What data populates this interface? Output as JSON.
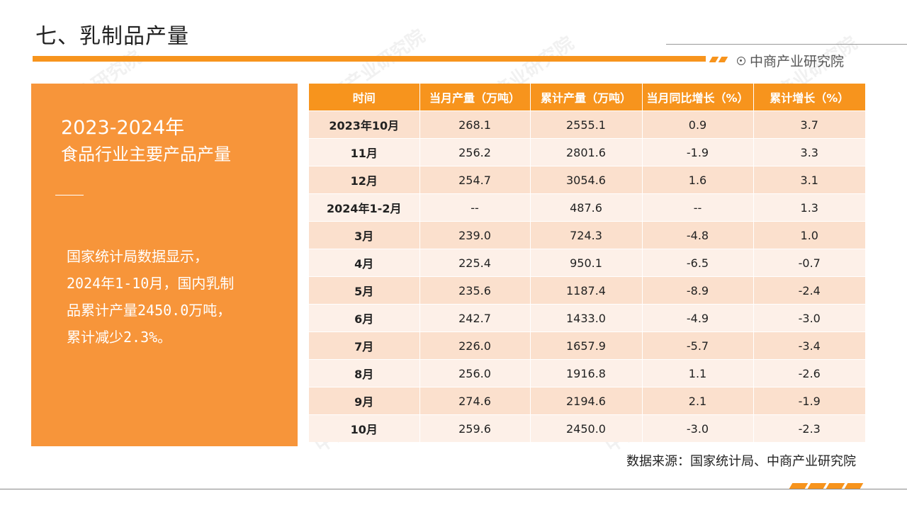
{
  "header": {
    "title": "七、乳制品产量",
    "brand": "中商产业研究院"
  },
  "left_panel": {
    "year": "2023-2024年",
    "subtitle": "食品行业主要产品产量",
    "body_lines": [
      "国家统计局数据显示，",
      "2024年1-10月，国内乳制",
      "品累计产量2450.0万吨，",
      "累计减少2.3%。"
    ]
  },
  "table": {
    "headers": [
      "时间",
      "当月产量（万吨）",
      "累计产量（万吨）",
      "当月同比增长（%）",
      "累计增长（%）"
    ],
    "rows": [
      [
        "2023年10月",
        "268.1",
        "2555.1",
        "0.9",
        "3.7"
      ],
      [
        "11月",
        "256.2",
        "2801.6",
        "-1.9",
        "3.3"
      ],
      [
        "12月",
        "254.7",
        "3054.6",
        "1.6",
        "3.1"
      ],
      [
        "2024年1-2月",
        "--",
        "487.6",
        "--",
        "1.3"
      ],
      [
        "3月",
        "239.0",
        "724.3",
        "-4.8",
        "1.0"
      ],
      [
        "4月",
        "225.4",
        "950.1",
        "-6.5",
        "-0.7"
      ],
      [
        "5月",
        "235.6",
        "1187.4",
        "-8.9",
        "-2.4"
      ],
      [
        "6月",
        "242.7",
        "1433.0",
        "-4.9",
        "-3.0"
      ],
      [
        "7月",
        "226.0",
        "1657.9",
        "-5.7",
        "-3.4"
      ],
      [
        "8月",
        "256.0",
        "1916.8",
        "1.1",
        "-2.6"
      ],
      [
        "9月",
        "274.6",
        "2194.6",
        "2.1",
        "-1.9"
      ],
      [
        "10月",
        "259.6",
        "2450.0",
        "-3.0",
        "-2.3"
      ]
    ]
  },
  "footer": {
    "source": "数据来源：国家统计局、中商产业研究院"
  },
  "colors": {
    "accent": "#f7941d",
    "panel": "#f7953a",
    "row_odd": "#fbe0cd",
    "row_even": "#fdf0e8"
  }
}
